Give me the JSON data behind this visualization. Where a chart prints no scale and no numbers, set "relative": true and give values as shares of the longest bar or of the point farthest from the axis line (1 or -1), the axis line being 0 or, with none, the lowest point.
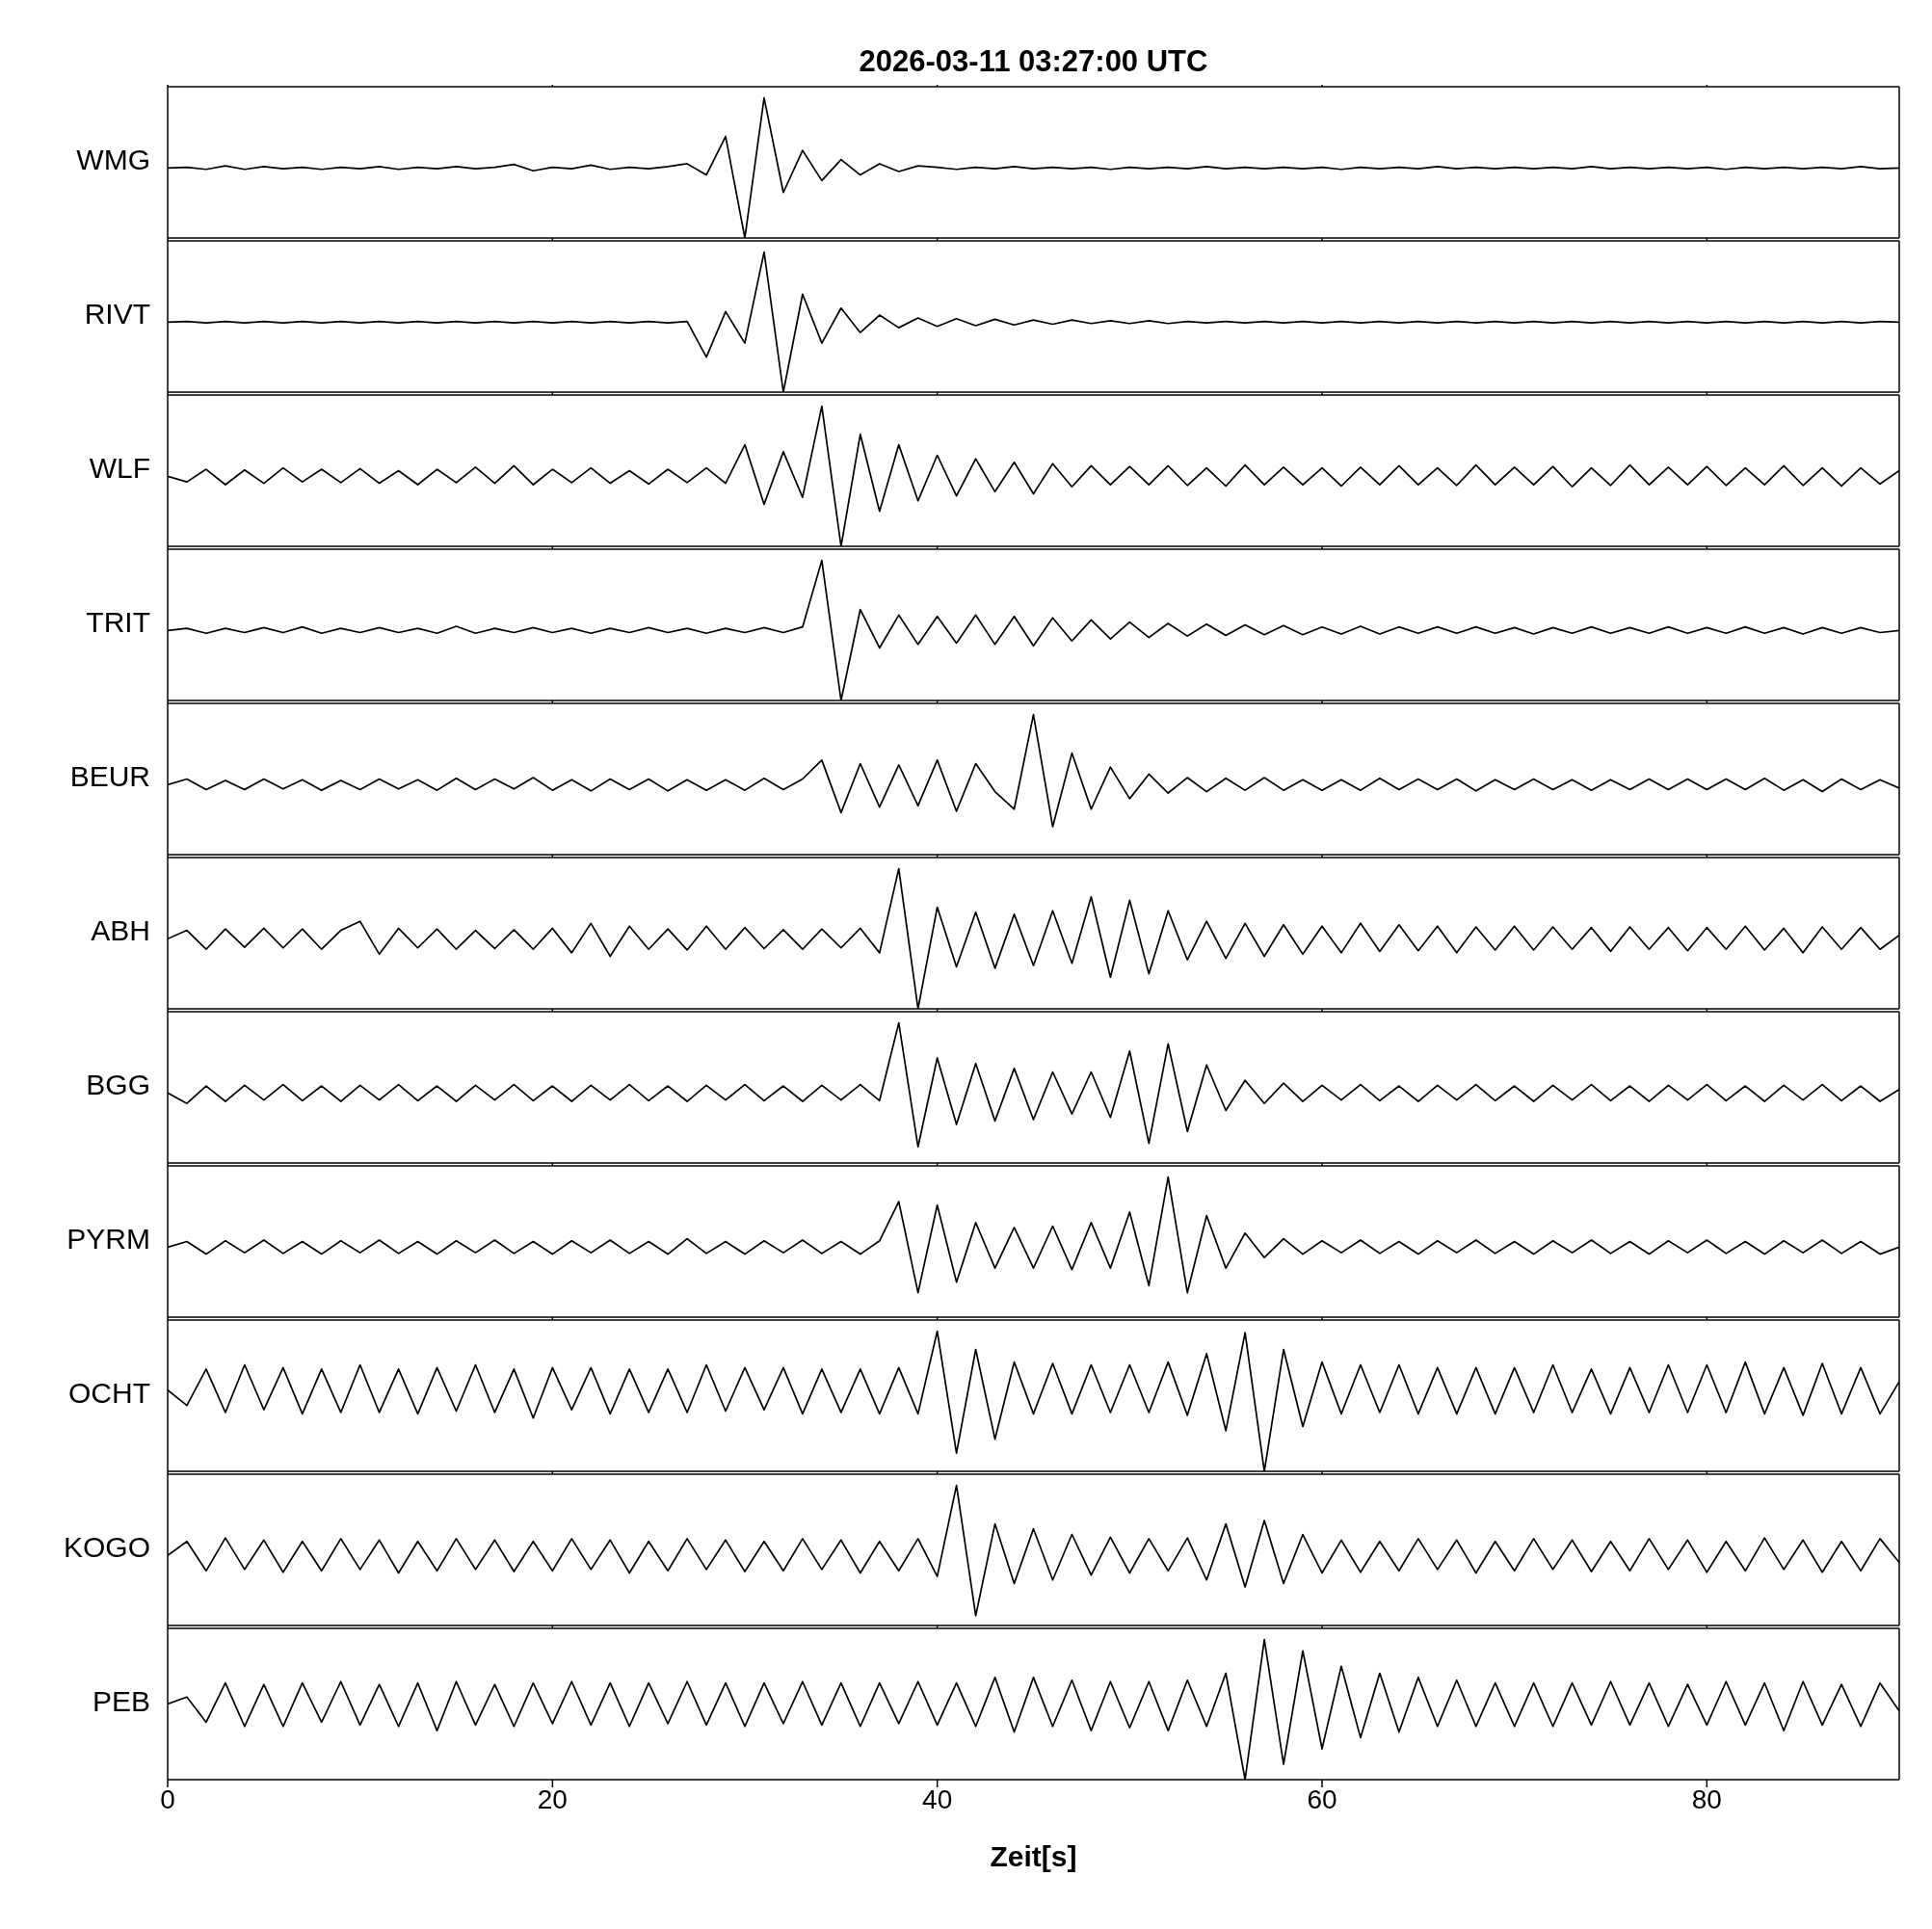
{
  "chart_data": [
    {
      "type": "line",
      "title": "2026-03-11  03:27:00 UTC",
      "ylabel": "WMG",
      "relative": true,
      "color": "#000000",
      "xlim": [
        0,
        90
      ],
      "xticks": [
        0,
        20,
        40,
        60,
        80
      ],
      "tick_labels": false,
      "x": [
        0,
        1,
        2,
        3,
        4,
        5,
        6,
        7,
        8,
        9,
        10,
        11,
        12,
        13,
        14,
        15,
        16,
        17,
        18,
        19,
        20,
        21,
        22,
        23,
        24,
        25,
        26,
        27,
        28,
        29,
        30,
        31,
        32,
        33,
        34,
        35,
        36,
        37,
        38,
        39,
        40,
        41,
        42,
        43,
        44,
        45,
        46,
        47,
        48,
        49,
        50,
        51,
        52,
        53,
        54,
        55,
        56,
        57,
        58,
        59,
        60,
        61,
        62,
        63,
        64,
        65,
        66,
        67,
        68,
        69,
        70,
        71,
        72,
        73,
        74,
        75,
        76,
        77,
        78,
        79,
        80,
        81,
        82,
        83,
        84,
        85,
        86,
        87,
        88,
        89,
        90
      ],
      "values": [
        0.5,
        0.505,
        0.49,
        0.515,
        0.49,
        0.51,
        0.495,
        0.505,
        0.49,
        0.505,
        0.495,
        0.51,
        0.49,
        0.505,
        0.495,
        0.51,
        0.495,
        0.505,
        0.525,
        0.48,
        0.505,
        0.495,
        0.52,
        0.49,
        0.505,
        0.495,
        0.51,
        0.53,
        0.45,
        0.725,
        0,
        1,
        0.325,
        0.625,
        0.41,
        0.56,
        0.45,
        0.53,
        0.475,
        0.515,
        0.505,
        0.49,
        0.505,
        0.495,
        0.51,
        0.495,
        0.505,
        0.495,
        0.505,
        0.49,
        0.505,
        0.495,
        0.505,
        0.495,
        0.51,
        0.495,
        0.505,
        0.495,
        0.505,
        0.495,
        0.505,
        0.49,
        0.505,
        0.495,
        0.505,
        0.495,
        0.51,
        0.495,
        0.505,
        0.495,
        0.505,
        0.495,
        0.505,
        0.495,
        0.51,
        0.495,
        0.505,
        0.495,
        0.505,
        0.495,
        0.505,
        0.49,
        0.505,
        0.495,
        0.505,
        0.495,
        0.505,
        0.495,
        0.51,
        0.495,
        0.5
      ]
    },
    {
      "type": "line",
      "ylabel": "RIVT",
      "relative": true,
      "color": "#000000",
      "xlim": [
        0,
        90
      ],
      "xticks": [
        0,
        20,
        40,
        60,
        80
      ],
      "tick_labels": false,
      "x": [
        0,
        1,
        2,
        3,
        4,
        5,
        6,
        7,
        8,
        9,
        10,
        11,
        12,
        13,
        14,
        15,
        16,
        17,
        18,
        19,
        20,
        21,
        22,
        23,
        24,
        25,
        26,
        27,
        28,
        29,
        30,
        31,
        32,
        33,
        34,
        35,
        36,
        37,
        38,
        39,
        40,
        41,
        42,
        43,
        44,
        45,
        46,
        47,
        48,
        49,
        50,
        51,
        52,
        53,
        54,
        55,
        56,
        57,
        58,
        59,
        60,
        61,
        62,
        63,
        64,
        65,
        66,
        67,
        68,
        69,
        70,
        71,
        72,
        73,
        74,
        75,
        76,
        77,
        78,
        79,
        80,
        81,
        82,
        83,
        84,
        85,
        86,
        87,
        88,
        89,
        90
      ],
      "values": [
        0.5,
        0.505,
        0.495,
        0.505,
        0.495,
        0.505,
        0.495,
        0.505,
        0.495,
        0.505,
        0.495,
        0.505,
        0.495,
        0.505,
        0.495,
        0.505,
        0.495,
        0.505,
        0.495,
        0.505,
        0.495,
        0.505,
        0.495,
        0.505,
        0.495,
        0.505,
        0.495,
        0.505,
        0.25,
        0.575,
        0.35,
        1,
        0,
        0.7,
        0.35,
        0.6,
        0.425,
        0.55,
        0.46,
        0.53,
        0.47,
        0.525,
        0.475,
        0.52,
        0.48,
        0.515,
        0.485,
        0.515,
        0.49,
        0.51,
        0.49,
        0.51,
        0.49,
        0.505,
        0.495,
        0.505,
        0.495,
        0.505,
        0.495,
        0.505,
        0.495,
        0.505,
        0.495,
        0.505,
        0.495,
        0.505,
        0.495,
        0.505,
        0.495,
        0.505,
        0.495,
        0.505,
        0.495,
        0.505,
        0.495,
        0.505,
        0.495,
        0.505,
        0.495,
        0.505,
        0.495,
        0.505,
        0.495,
        0.505,
        0.495,
        0.505,
        0.495,
        0.505,
        0.495,
        0.505,
        0.5
      ]
    },
    {
      "type": "line",
      "ylabel": "WLF",
      "relative": true,
      "color": "#000000",
      "xlim": [
        0,
        90
      ],
      "xticks": [
        0,
        20,
        40,
        60,
        80
      ],
      "tick_labels": false,
      "x": [
        0,
        1,
        2,
        3,
        4,
        5,
        6,
        7,
        8,
        9,
        10,
        11,
        12,
        13,
        14,
        15,
        16,
        17,
        18,
        19,
        20,
        21,
        22,
        23,
        24,
        25,
        26,
        27,
        28,
        29,
        30,
        31,
        32,
        33,
        34,
        35,
        36,
        37,
        38,
        39,
        40,
        41,
        42,
        43,
        44,
        45,
        46,
        47,
        48,
        49,
        50,
        51,
        52,
        53,
        54,
        55,
        56,
        57,
        58,
        59,
        60,
        61,
        62,
        63,
        64,
        65,
        66,
        67,
        68,
        69,
        70,
        71,
        72,
        73,
        74,
        75,
        76,
        77,
        78,
        79,
        80,
        81,
        82,
        83,
        84,
        85,
        86,
        87,
        88,
        89,
        90
      ],
      "values": [
        0.5,
        0.46,
        0.55,
        0.44,
        0.545,
        0.45,
        0.56,
        0.46,
        0.55,
        0.455,
        0.555,
        0.45,
        0.54,
        0.44,
        0.55,
        0.455,
        0.565,
        0.45,
        0.575,
        0.44,
        0.55,
        0.455,
        0.56,
        0.45,
        0.54,
        0.445,
        0.55,
        0.455,
        0.56,
        0.45,
        0.725,
        0.3,
        0.675,
        0.35,
        1,
        0,
        0.8,
        0.25,
        0.725,
        0.325,
        0.65,
        0.36,
        0.625,
        0.39,
        0.6,
        0.375,
        0.59,
        0.425,
        0.575,
        0.44,
        0.57,
        0.44,
        0.575,
        0.435,
        0.56,
        0.43,
        0.58,
        0.44,
        0.565,
        0.44,
        0.56,
        0.43,
        0.565,
        0.44,
        0.575,
        0.44,
        0.56,
        0.435,
        0.58,
        0.44,
        0.565,
        0.44,
        0.57,
        0.425,
        0.56,
        0.435,
        0.58,
        0.44,
        0.565,
        0.44,
        0.57,
        0.435,
        0.56,
        0.44,
        0.575,
        0.435,
        0.56,
        0.43,
        0.56,
        0.445,
        0.54
      ]
    },
    {
      "type": "line",
      "ylabel": "TRIT",
      "relative": true,
      "color": "#000000",
      "xlim": [
        0,
        90
      ],
      "xticks": [
        0,
        20,
        40,
        60,
        80
      ],
      "tick_labels": false,
      "x": [
        0,
        1,
        2,
        3,
        4,
        5,
        6,
        7,
        8,
        9,
        10,
        11,
        12,
        13,
        14,
        15,
        16,
        17,
        18,
        19,
        20,
        21,
        22,
        23,
        24,
        25,
        26,
        27,
        28,
        29,
        30,
        31,
        32,
        33,
        34,
        35,
        36,
        37,
        38,
        39,
        40,
        41,
        42,
        43,
        44,
        45,
        46,
        47,
        48,
        49,
        50,
        51,
        52,
        53,
        54,
        55,
        56,
        57,
        58,
        59,
        60,
        61,
        62,
        63,
        64,
        65,
        66,
        67,
        68,
        69,
        70,
        71,
        72,
        73,
        74,
        75,
        76,
        77,
        78,
        79,
        80,
        81,
        82,
        83,
        84,
        85,
        86,
        87,
        88,
        89,
        90
      ],
      "values": [
        0.5,
        0.515,
        0.48,
        0.515,
        0.485,
        0.52,
        0.485,
        0.525,
        0.48,
        0.515,
        0.485,
        0.52,
        0.485,
        0.515,
        0.48,
        0.53,
        0.48,
        0.515,
        0.485,
        0.52,
        0.485,
        0.515,
        0.48,
        0.515,
        0.485,
        0.52,
        0.485,
        0.515,
        0.48,
        0.515,
        0.485,
        0.52,
        0.485,
        0.525,
        1,
        0,
        0.65,
        0.375,
        0.61,
        0.4,
        0.6,
        0.41,
        0.61,
        0.4,
        0.6,
        0.39,
        0.59,
        0.425,
        0.575,
        0.44,
        0.56,
        0.45,
        0.55,
        0.46,
        0.545,
        0.465,
        0.54,
        0.47,
        0.535,
        0.47,
        0.525,
        0.475,
        0.53,
        0.475,
        0.525,
        0.48,
        0.525,
        0.48,
        0.525,
        0.48,
        0.52,
        0.475,
        0.52,
        0.48,
        0.525,
        0.48,
        0.52,
        0.48,
        0.525,
        0.48,
        0.52,
        0.48,
        0.525,
        0.48,
        0.52,
        0.475,
        0.52,
        0.48,
        0.52,
        0.485,
        0.5
      ]
    },
    {
      "type": "line",
      "ylabel": "BEUR",
      "relative": true,
      "color": "#000000",
      "xlim": [
        0,
        90
      ],
      "xticks": [
        0,
        20,
        40,
        60,
        80
      ],
      "tick_labels": false,
      "x": [
        0,
        1,
        2,
        3,
        4,
        5,
        6,
        7,
        8,
        9,
        10,
        11,
        12,
        13,
        14,
        15,
        16,
        17,
        18,
        19,
        20,
        21,
        22,
        23,
        24,
        25,
        26,
        27,
        28,
        29,
        30,
        31,
        32,
        33,
        34,
        35,
        36,
        37,
        38,
        39,
        40,
        41,
        42,
        43,
        44,
        45,
        46,
        47,
        48,
        49,
        50,
        51,
        52,
        53,
        54,
        55,
        56,
        57,
        58,
        59,
        60,
        61,
        62,
        63,
        64,
        65,
        66,
        67,
        68,
        69,
        70,
        71,
        72,
        73,
        74,
        75,
        76,
        77,
        78,
        79,
        80,
        81,
        82,
        83,
        84,
        85,
        86,
        87,
        88,
        89,
        90
      ],
      "values": [
        0.5,
        0.54,
        0.465,
        0.53,
        0.465,
        0.54,
        0.47,
        0.535,
        0.46,
        0.53,
        0.465,
        0.54,
        0.47,
        0.535,
        0.46,
        0.545,
        0.465,
        0.54,
        0.47,
        0.55,
        0.46,
        0.535,
        0.455,
        0.54,
        0.465,
        0.54,
        0.455,
        0.535,
        0.46,
        0.535,
        0.46,
        0.545,
        0.465,
        0.54,
        0.675,
        0.3,
        0.65,
        0.34,
        0.64,
        0.35,
        0.675,
        0.31,
        0.65,
        0.45,
        0.325,
        1,
        0.2,
        0.725,
        0.325,
        0.625,
        0.4,
        0.575,
        0.44,
        0.55,
        0.45,
        0.545,
        0.46,
        0.55,
        0.46,
        0.535,
        0.46,
        0.535,
        0.46,
        0.545,
        0.465,
        0.54,
        0.465,
        0.54,
        0.455,
        0.535,
        0.465,
        0.54,
        0.465,
        0.535,
        0.46,
        0.535,
        0.465,
        0.54,
        0.465,
        0.54,
        0.465,
        0.54,
        0.465,
        0.545,
        0.46,
        0.535,
        0.45,
        0.54,
        0.465,
        0.535,
        0.475
      ]
    },
    {
      "type": "line",
      "ylabel": "ABH",
      "relative": true,
      "color": "#000000",
      "xlim": [
        0,
        90
      ],
      "xticks": [
        0,
        20,
        40,
        60,
        80
      ],
      "tick_labels": false,
      "x": [
        0,
        1,
        2,
        3,
        4,
        5,
        6,
        7,
        8,
        9,
        10,
        11,
        12,
        13,
        14,
        15,
        16,
        17,
        18,
        19,
        20,
        21,
        22,
        23,
        24,
        25,
        26,
        27,
        28,
        29,
        30,
        31,
        32,
        33,
        34,
        35,
        36,
        37,
        38,
        39,
        40,
        41,
        42,
        43,
        44,
        45,
        46,
        47,
        48,
        49,
        50,
        51,
        52,
        53,
        54,
        55,
        56,
        57,
        58,
        59,
        60,
        61,
        62,
        63,
        64,
        65,
        66,
        67,
        68,
        69,
        70,
        71,
        72,
        73,
        74,
        75,
        76,
        77,
        78,
        79,
        80,
        81,
        82,
        83,
        84,
        85,
        86,
        87,
        88,
        89,
        90
      ],
      "values": [
        0.5,
        0.56,
        0.425,
        0.57,
        0.44,
        0.575,
        0.435,
        0.57,
        0.425,
        0.56,
        0.625,
        0.39,
        0.575,
        0.435,
        0.57,
        0.425,
        0.56,
        0.43,
        0.565,
        0.425,
        0.575,
        0.4,
        0.61,
        0.375,
        0.59,
        0.425,
        0.57,
        0.42,
        0.59,
        0.425,
        0.58,
        0.43,
        0.565,
        0.425,
        0.57,
        0.435,
        0.575,
        0.4,
        1,
        0,
        0.725,
        0.3,
        0.69,
        0.29,
        0.675,
        0.31,
        0.7,
        0.325,
        0.8,
        0.225,
        0.775,
        0.25,
        0.7,
        0.35,
        0.625,
        0.36,
        0.61,
        0.375,
        0.6,
        0.39,
        0.59,
        0.4,
        0.61,
        0.41,
        0.6,
        0.415,
        0.59,
        0.4,
        0.585,
        0.42,
        0.59,
        0.42,
        0.585,
        0.425,
        0.58,
        0.41,
        0.585,
        0.425,
        0.58,
        0.415,
        0.58,
        0.425,
        0.59,
        0.42,
        0.575,
        0.4,
        0.585,
        0.425,
        0.58,
        0.425,
        0.525
      ]
    },
    {
      "type": "line",
      "ylabel": "BGG",
      "relative": true,
      "color": "#000000",
      "xlim": [
        0,
        90
      ],
      "xticks": [
        0,
        20,
        40,
        60,
        80
      ],
      "tick_labels": false,
      "x": [
        0,
        1,
        2,
        3,
        4,
        5,
        6,
        7,
        8,
        9,
        10,
        11,
        12,
        13,
        14,
        15,
        16,
        17,
        18,
        19,
        20,
        21,
        22,
        23,
        24,
        25,
        26,
        27,
        28,
        29,
        30,
        31,
        32,
        33,
        34,
        35,
        36,
        37,
        38,
        39,
        40,
        41,
        42,
        43,
        44,
        45,
        46,
        47,
        48,
        49,
        50,
        51,
        52,
        53,
        54,
        55,
        56,
        57,
        58,
        59,
        60,
        61,
        62,
        63,
        64,
        65,
        66,
        67,
        68,
        69,
        70,
        71,
        72,
        73,
        74,
        75,
        76,
        77,
        78,
        79,
        80,
        81,
        82,
        83,
        84,
        85,
        86,
        87,
        88,
        89,
        90
      ],
      "values": [
        0.5,
        0.425,
        0.55,
        0.44,
        0.555,
        0.45,
        0.56,
        0.445,
        0.55,
        0.44,
        0.555,
        0.45,
        0.56,
        0.445,
        0.55,
        0.44,
        0.555,
        0.45,
        0.56,
        0.445,
        0.55,
        0.44,
        0.555,
        0.45,
        0.56,
        0.445,
        0.55,
        0.44,
        0.555,
        0.45,
        0.56,
        0.445,
        0.55,
        0.44,
        0.555,
        0.45,
        0.56,
        0.445,
        1,
        0.115,
        0.75,
        0.275,
        0.71,
        0.3,
        0.675,
        0.31,
        0.65,
        0.35,
        0.65,
        0.325,
        0.8,
        0.14,
        0.85,
        0.225,
        0.7,
        0.375,
        0.59,
        0.425,
        0.57,
        0.44,
        0.555,
        0.45,
        0.56,
        0.445,
        0.55,
        0.44,
        0.555,
        0.45,
        0.56,
        0.445,
        0.55,
        0.44,
        0.555,
        0.45,
        0.56,
        0.445,
        0.55,
        0.44,
        0.555,
        0.45,
        0.56,
        0.445,
        0.55,
        0.44,
        0.555,
        0.45,
        0.56,
        0.445,
        0.55,
        0.44,
        0.525
      ]
    },
    {
      "type": "line",
      "ylabel": "PYRM",
      "relative": true,
      "color": "#000000",
      "xlim": [
        0,
        90
      ],
      "xticks": [
        0,
        20,
        40,
        60,
        80
      ],
      "tick_labels": false,
      "x": [
        0,
        1,
        2,
        3,
        4,
        5,
        6,
        7,
        8,
        9,
        10,
        11,
        12,
        13,
        14,
        15,
        16,
        17,
        18,
        19,
        20,
        21,
        22,
        23,
        24,
        25,
        26,
        27,
        28,
        29,
        30,
        31,
        32,
        33,
        34,
        35,
        36,
        37,
        38,
        39,
        40,
        41,
        42,
        43,
        44,
        45,
        46,
        47,
        48,
        49,
        50,
        51,
        52,
        53,
        54,
        55,
        56,
        57,
        58,
        59,
        60,
        61,
        62,
        63,
        64,
        65,
        66,
        67,
        68,
        69,
        70,
        71,
        72,
        73,
        74,
        75,
        76,
        77,
        78,
        79,
        80,
        81,
        82,
        83,
        84,
        85,
        86,
        87,
        88,
        89,
        90
      ],
      "values": [
        0.5,
        0.54,
        0.45,
        0.545,
        0.46,
        0.55,
        0.455,
        0.54,
        0.45,
        0.545,
        0.46,
        0.55,
        0.455,
        0.54,
        0.45,
        0.545,
        0.46,
        0.55,
        0.455,
        0.54,
        0.45,
        0.545,
        0.46,
        0.55,
        0.455,
        0.54,
        0.45,
        0.56,
        0.455,
        0.54,
        0.45,
        0.545,
        0.46,
        0.55,
        0.455,
        0.54,
        0.45,
        0.545,
        0.825,
        0.175,
        0.8,
        0.25,
        0.675,
        0.35,
        0.64,
        0.35,
        0.65,
        0.34,
        0.675,
        0.35,
        0.75,
        0.225,
        1,
        0.175,
        0.725,
        0.35,
        0.6,
        0.425,
        0.56,
        0.45,
        0.545,
        0.46,
        0.55,
        0.455,
        0.54,
        0.45,
        0.545,
        0.46,
        0.55,
        0.455,
        0.54,
        0.45,
        0.545,
        0.46,
        0.55,
        0.455,
        0.54,
        0.45,
        0.545,
        0.46,
        0.55,
        0.455,
        0.54,
        0.45,
        0.545,
        0.46,
        0.55,
        0.455,
        0.54,
        0.45,
        0.5
      ]
    },
    {
      "type": "line",
      "ylabel": "OCHT",
      "relative": true,
      "color": "#000000",
      "xlim": [
        0,
        90
      ],
      "xticks": [
        0,
        20,
        40,
        60,
        80
      ],
      "tick_labels": false,
      "x": [
        0,
        1,
        2,
        3,
        4,
        5,
        6,
        7,
        8,
        9,
        10,
        11,
        12,
        13,
        14,
        15,
        16,
        17,
        18,
        19,
        20,
        21,
        22,
        23,
        24,
        25,
        26,
        27,
        28,
        29,
        30,
        31,
        32,
        33,
        34,
        35,
        36,
        37,
        38,
        39,
        40,
        41,
        42,
        43,
        44,
        45,
        46,
        47,
        48,
        49,
        50,
        51,
        52,
        53,
        54,
        55,
        56,
        57,
        58,
        59,
        60,
        61,
        62,
        63,
        64,
        65,
        66,
        67,
        68,
        69,
        70,
        71,
        72,
        73,
        74,
        75,
        76,
        77,
        78,
        79,
        80,
        81,
        82,
        83,
        84,
        85,
        86,
        87,
        88,
        89,
        90
      ],
      "values": [
        0.58,
        0.47,
        0.73,
        0.42,
        0.76,
        0.44,
        0.74,
        0.41,
        0.73,
        0.42,
        0.76,
        0.42,
        0.73,
        0.41,
        0.74,
        0.43,
        0.76,
        0.42,
        0.73,
        0.38,
        0.74,
        0.44,
        0.74,
        0.41,
        0.73,
        0.42,
        0.73,
        0.42,
        0.76,
        0.43,
        0.74,
        0.44,
        0.74,
        0.41,
        0.73,
        0.42,
        0.73,
        0.41,
        0.74,
        0.41,
        1,
        0.13,
        0.87,
        0.23,
        0.78,
        0.41,
        0.77,
        0.41,
        0.76,
        0.42,
        0.76,
        0.42,
        0.78,
        0.4,
        0.84,
        0.29,
        0.99,
        0,
        0.87,
        0.32,
        0.78,
        0.41,
        0.76,
        0.42,
        0.76,
        0.41,
        0.74,
        0.41,
        0.74,
        0.41,
        0.74,
        0.42,
        0.76,
        0.42,
        0.73,
        0.41,
        0.74,
        0.42,
        0.76,
        0.42,
        0.76,
        0.42,
        0.78,
        0.41,
        0.74,
        0.4,
        0.77,
        0.41,
        0.74,
        0.41,
        0.64
      ]
    },
    {
      "type": "line",
      "ylabel": "KOGO",
      "relative": true,
      "color": "#000000",
      "xlim": [
        0,
        90
      ],
      "xticks": [
        0,
        20,
        40,
        60,
        80
      ],
      "tick_labels": false,
      "x": [
        0,
        1,
        2,
        3,
        4,
        5,
        6,
        7,
        8,
        9,
        10,
        11,
        12,
        13,
        14,
        15,
        16,
        17,
        18,
        19,
        20,
        21,
        22,
        23,
        24,
        25,
        26,
        27,
        28,
        29,
        30,
        31,
        32,
        33,
        34,
        35,
        36,
        37,
        38,
        39,
        40,
        41,
        42,
        43,
        44,
        45,
        46,
        47,
        48,
        49,
        50,
        51,
        52,
        53,
        54,
        55,
        56,
        57,
        58,
        59,
        60,
        61,
        62,
        63,
        64,
        65,
        66,
        67,
        68,
        69,
        70,
        71,
        72,
        73,
        74,
        75,
        76,
        77,
        78,
        79,
        80,
        81,
        82,
        83,
        84,
        85,
        86,
        87,
        88,
        89,
        90
      ],
      "values": [
        0.5,
        0.6,
        0.39,
        0.625,
        0.4,
        0.61,
        0.38,
        0.6,
        0.39,
        0.62,
        0.4,
        0.61,
        0.375,
        0.6,
        0.39,
        0.62,
        0.4,
        0.61,
        0.385,
        0.6,
        0.39,
        0.62,
        0.4,
        0.61,
        0.375,
        0.6,
        0.39,
        0.62,
        0.4,
        0.61,
        0.385,
        0.6,
        0.39,
        0.62,
        0.4,
        0.61,
        0.375,
        0.6,
        0.39,
        0.62,
        0.35,
        1,
        0.07,
        0.725,
        0.3,
        0.69,
        0.325,
        0.65,
        0.36,
        0.63,
        0.375,
        0.62,
        0.39,
        0.625,
        0.325,
        0.725,
        0.275,
        0.75,
        0.3,
        0.65,
        0.375,
        0.61,
        0.38,
        0.6,
        0.39,
        0.62,
        0.4,
        0.61,
        0.375,
        0.6,
        0.39,
        0.62,
        0.4,
        0.61,
        0.385,
        0.6,
        0.39,
        0.62,
        0.4,
        0.61,
        0.38,
        0.6,
        0.39,
        0.625,
        0.4,
        0.61,
        0.38,
        0.6,
        0.39,
        0.62,
        0.45
      ]
    },
    {
      "type": "line",
      "ylabel": "PEB",
      "xlabel": "Zeit[s]",
      "relative": true,
      "color": "#000000",
      "xlim": [
        0,
        90
      ],
      "xticks": [
        0,
        20,
        40,
        60,
        80
      ],
      "tick_labels": "x",
      "x": [
        0,
        1,
        2,
        3,
        4,
        5,
        6,
        7,
        8,
        9,
        10,
        11,
        12,
        13,
        14,
        15,
        16,
        17,
        18,
        19,
        20,
        21,
        22,
        23,
        24,
        25,
        26,
        27,
        28,
        29,
        30,
        31,
        32,
        33,
        34,
        35,
        36,
        37,
        38,
        39,
        40,
        41,
        42,
        43,
        44,
        45,
        46,
        47,
        48,
        49,
        50,
        51,
        52,
        53,
        54,
        55,
        56,
        57,
        58,
        59,
        60,
        61,
        62,
        63,
        64,
        65,
        66,
        67,
        68,
        69,
        70,
        71,
        72,
        73,
        74,
        75,
        76,
        77,
        78,
        79,
        80,
        81,
        82,
        83,
        84,
        85,
        86,
        87,
        88,
        89,
        90
      ],
      "values": [
        0.54,
        0.59,
        0.41,
        0.69,
        0.38,
        0.68,
        0.38,
        0.69,
        0.41,
        0.7,
        0.39,
        0.68,
        0.38,
        0.69,
        0.35,
        0.7,
        0.39,
        0.68,
        0.38,
        0.69,
        0.4,
        0.7,
        0.39,
        0.69,
        0.38,
        0.69,
        0.4,
        0.7,
        0.39,
        0.69,
        0.38,
        0.69,
        0.4,
        0.7,
        0.39,
        0.69,
        0.38,
        0.69,
        0.4,
        0.7,
        0.39,
        0.69,
        0.38,
        0.73,
        0.34,
        0.73,
        0.38,
        0.71,
        0.35,
        0.7,
        0.37,
        0.7,
        0.35,
        0.71,
        0.38,
        0.76,
        0,
        1,
        0.11,
        0.92,
        0.22,
        0.81,
        0.3,
        0.76,
        0.34,
        0.73,
        0.38,
        0.71,
        0.38,
        0.69,
        0.38,
        0.69,
        0.38,
        0.69,
        0.39,
        0.7,
        0.39,
        0.69,
        0.38,
        0.68,
        0.39,
        0.7,
        0.39,
        0.69,
        0.35,
        0.7,
        0.39,
        0.68,
        0.38,
        0.69,
        0.49
      ]
    }
  ]
}
